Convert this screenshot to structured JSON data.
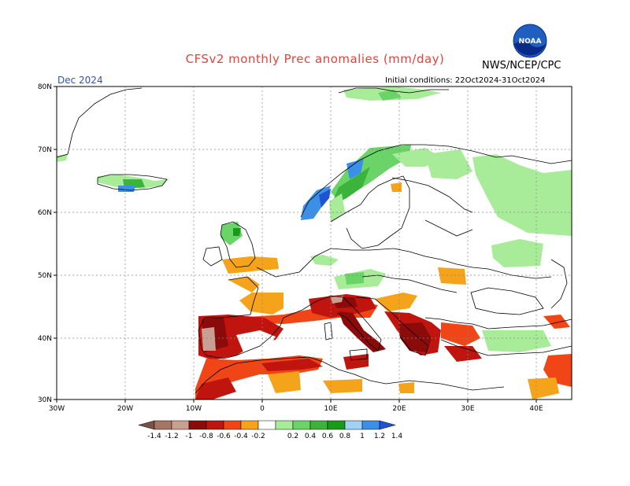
{
  "header": {
    "title": "CFSv2 monthly Prec anomalies (mm/day)",
    "organization": "NWS/NCEP/CPC",
    "month": "Dec 2024",
    "initial_conditions": "Initial conditions: 22Oct2024-31Oct2024"
  },
  "axes": {
    "lat_labels": [
      "80N",
      "70N",
      "60N",
      "50N",
      "40N",
      "30N"
    ],
    "lon_labels": [
      "30W",
      "20W",
      "10W",
      "0",
      "10E",
      "20E",
      "30E",
      "40E"
    ]
  },
  "colorbar": {
    "labels": [
      "-1.4",
      "-1.2",
      "-1",
      "-0.8",
      "-0.6",
      "-0.4",
      "-0.2",
      "0.2",
      "0.4",
      "0.6",
      "0.8",
      "1",
      "1.2",
      "1.4"
    ],
    "colors": [
      "#7a5244",
      "#a57565",
      "#c8a091",
      "#8b0a0a",
      "#c0140f",
      "#ef4517",
      "#f5a31b",
      "#ffffff",
      "#a8ec9a",
      "#6ad468",
      "#3cb43c",
      "#1a9a1a",
      "#9fd2f5",
      "#3a8fe6",
      "#1e54d4"
    ]
  },
  "logo": {
    "icon": "noaa-logo-icon",
    "text": "NOAA"
  }
}
